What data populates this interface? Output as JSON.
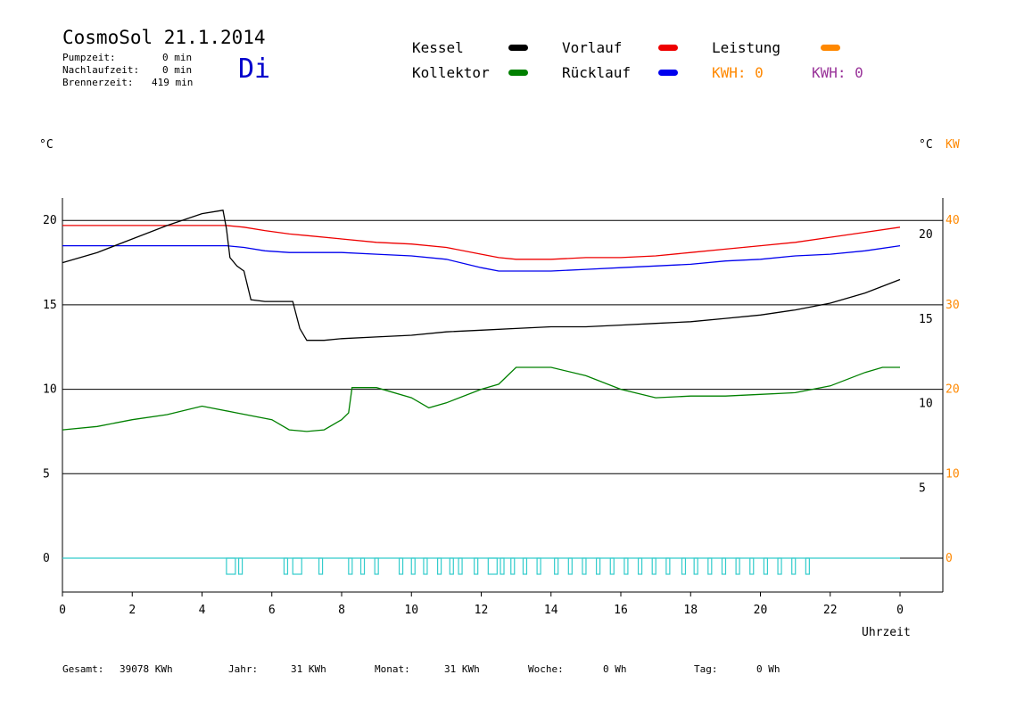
{
  "header": {
    "title": "CosmoSol 21.1.2014",
    "day": "Di",
    "stats": [
      {
        "label": "Pumpzeit:",
        "value": "0 min"
      },
      {
        "label": "Nachlaufzeit:",
        "value": "0 min"
      },
      {
        "label": "Brennerzeit:",
        "value": "419 min"
      }
    ]
  },
  "legend": {
    "kessel": {
      "label": "Kessel",
      "color": "#000000"
    },
    "kollektor": {
      "label": "Kollektor",
      "color": "#008000"
    },
    "vorlauf": {
      "label": "Vorlauf",
      "color": "#ee0000"
    },
    "ruecklauf": {
      "label": "Rücklauf",
      "color": "#0000ee"
    },
    "leistung": {
      "label": "Leistung",
      "color": "#ff8800"
    },
    "kwh_orange": "KWH: 0",
    "kwh_purple": "KWH: 0"
  },
  "axes": {
    "left_unit": "°C",
    "right_unit_c": "°C",
    "right_unit_kw": "KW",
    "x_label": "Uhrzeit"
  },
  "footer": {
    "gesamt_label": "Gesamt:",
    "gesamt_value": "39078 KWh",
    "jahr_label": "Jahr:",
    "jahr_value": "31 KWh",
    "monat_label": "Monat:",
    "monat_value": "31 KWh",
    "woche_label": "Woche:",
    "woche_value": "0 Wh",
    "tag_label": "Tag:",
    "tag_value": "0 Wh"
  },
  "chart_data": {
    "type": "line",
    "x_ticks": [
      "0",
      "2",
      "4",
      "6",
      "8",
      "10",
      "12",
      "14",
      "16",
      "18",
      "20",
      "22",
      "0"
    ],
    "xlim": [
      0,
      24
    ],
    "ylim_left": [
      -1.5,
      22
    ],
    "left_ticks": [
      "0",
      "5",
      "10",
      "15",
      "20"
    ],
    "right_ticks_c": [
      "5",
      "10",
      "15",
      "20"
    ],
    "right_ticks_kw": [
      "0",
      "10",
      "20",
      "30",
      "40"
    ],
    "grid": true,
    "series": [
      {
        "name": "Vorlauf",
        "color": "#ee0000",
        "x": [
          0,
          1,
          2,
          3,
          4,
          4.7,
          5.2,
          5.8,
          6.5,
          7,
          8,
          9,
          10,
          11,
          12,
          12.5,
          13,
          14,
          15,
          16,
          17,
          18,
          19,
          20,
          21,
          22,
          23,
          24
        ],
        "y": [
          19.7,
          19.7,
          19.7,
          19.7,
          19.7,
          19.7,
          19.6,
          19.4,
          19.2,
          19.1,
          18.9,
          18.7,
          18.6,
          18.4,
          18.0,
          17.8,
          17.7,
          17.7,
          17.8,
          17.8,
          17.9,
          18.1,
          18.3,
          18.5,
          18.7,
          19.0,
          19.3,
          19.6
        ]
      },
      {
        "name": "Rücklauf",
        "color": "#0000ee",
        "x": [
          0,
          1,
          2,
          3,
          4,
          4.7,
          5.2,
          5.8,
          6.5,
          7,
          8,
          9,
          10,
          11,
          12,
          12.5,
          13,
          14,
          15,
          16,
          17,
          18,
          19,
          20,
          21,
          22,
          23,
          24
        ],
        "y": [
          18.5,
          18.5,
          18.5,
          18.5,
          18.5,
          18.5,
          18.4,
          18.2,
          18.1,
          18.1,
          18.1,
          18.0,
          17.9,
          17.7,
          17.2,
          17.0,
          17.0,
          17.0,
          17.1,
          17.2,
          17.3,
          17.4,
          17.6,
          17.7,
          17.9,
          18.0,
          18.2,
          18.5
        ]
      },
      {
        "name": "Kessel",
        "color": "#000000",
        "x": [
          0,
          1,
          2,
          3,
          4,
          4.6,
          4.7,
          4.8,
          5.0,
          5.2,
          5.4,
          5.8,
          6.2,
          6.6,
          6.8,
          7.0,
          7.5,
          8,
          9,
          10,
          11,
          12,
          13,
          14,
          15,
          16,
          17,
          18,
          19,
          20,
          21,
          22,
          23,
          24
        ],
        "y": [
          17.5,
          18.1,
          18.9,
          19.7,
          20.4,
          20.6,
          19.5,
          17.8,
          17.3,
          17.0,
          15.3,
          15.2,
          15.2,
          15.2,
          13.6,
          12.9,
          12.9,
          13.0,
          13.1,
          13.2,
          13.4,
          13.5,
          13.6,
          13.7,
          13.7,
          13.8,
          13.9,
          14.0,
          14.2,
          14.4,
          14.7,
          15.1,
          15.7,
          16.5
        ]
      },
      {
        "name": "Kollektor",
        "color": "#008000",
        "x": [
          0,
          1,
          2,
          3,
          4,
          5,
          6,
          6.5,
          7,
          7.5,
          8,
          8.2,
          8.3,
          9,
          10,
          10.5,
          11,
          12,
          12.5,
          13,
          14,
          15,
          16,
          17,
          18,
          19,
          20,
          21,
          22,
          23,
          23.5,
          24
        ],
        "y": [
          7.6,
          7.8,
          8.2,
          8.5,
          9.0,
          8.6,
          8.2,
          7.6,
          7.5,
          7.6,
          8.2,
          8.6,
          10.1,
          10.1,
          9.5,
          8.9,
          9.2,
          10.0,
          10.3,
          11.3,
          11.3,
          10.8,
          10.0,
          9.5,
          9.6,
          9.6,
          9.7,
          9.8,
          10.2,
          11.0,
          11.3,
          11.3
        ]
      }
    ]
  }
}
